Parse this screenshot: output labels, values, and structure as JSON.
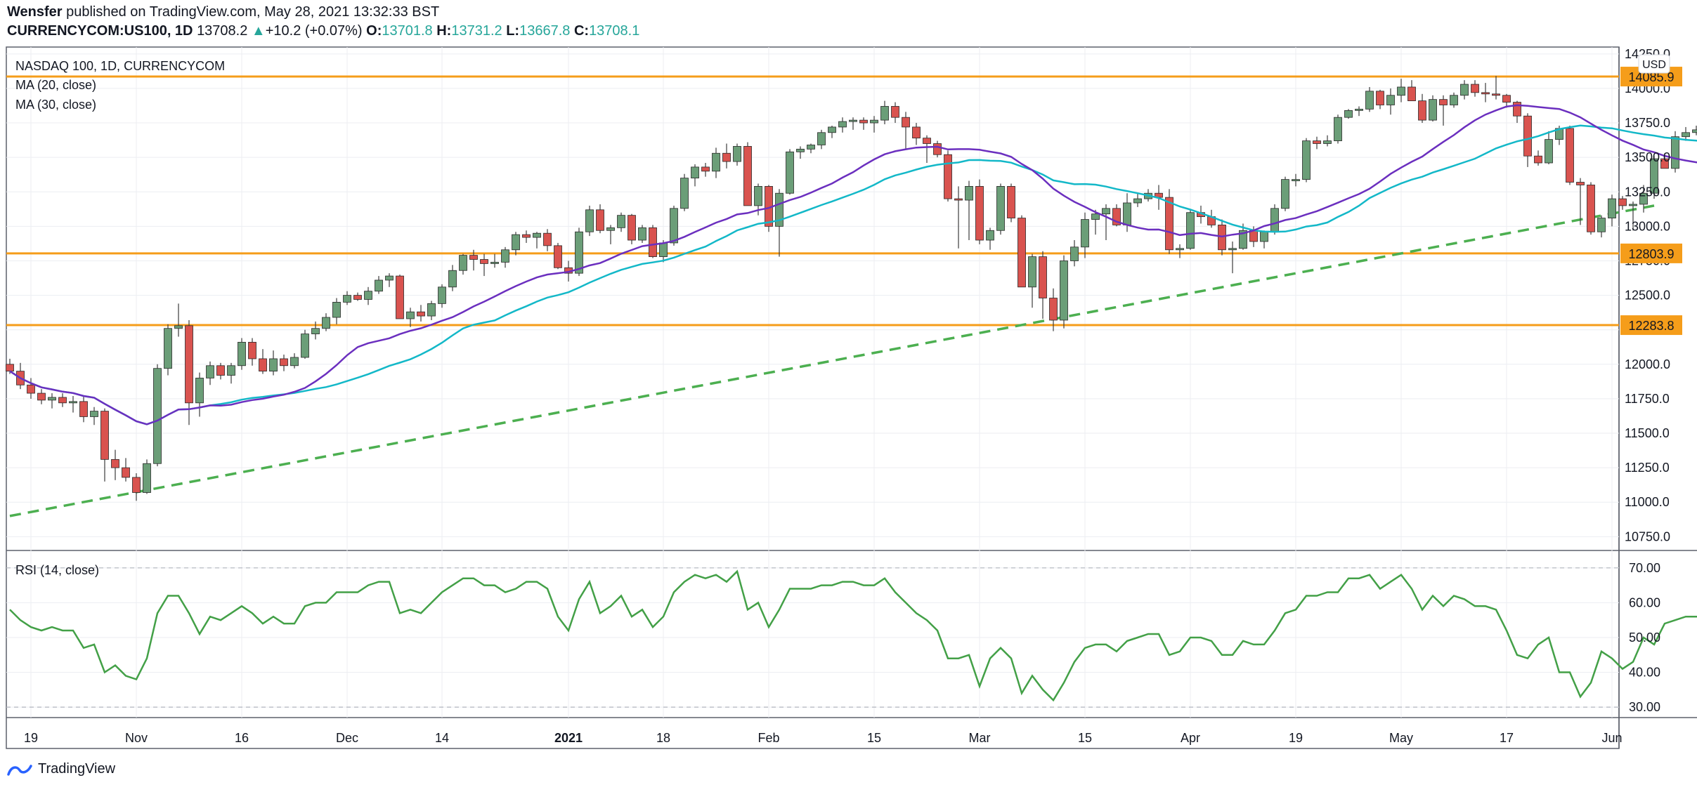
{
  "header": {
    "publisher": "Wensfer",
    "published_text": " published on TradingView.com, May 28, 2021 13:32:33 BST",
    "symbol": "CURRENCYCOM:US100, 1D",
    "last": "13708.2",
    "change_arrow": "▲",
    "change": "+10.2 (+0.07%)",
    "open_label": "O:",
    "open": "13701.8",
    "high_label": "H:",
    "high": "13731.2",
    "low_label": "L:",
    "low": "13667.8",
    "close_label": "C:",
    "close": "13708.1"
  },
  "legend": {
    "title": "NASDAQ 100, 1D, CURRENCYCOM",
    "ma20": "MA (20, close)",
    "ma30": "MA (30, close)",
    "currency": "USD",
    "rsi": "RSI (14, close)"
  },
  "footer": {
    "brand": "TradingView",
    "logo_icon": "tradingview-logo-icon"
  },
  "colors": {
    "up": "#26a69a",
    "up_body": "#6b9e78",
    "down_body": "#d9534f",
    "ma20": "#6b2fbf",
    "ma30": "#13b8c8",
    "level": "#f59d1a",
    "trend": "#4caf50",
    "rsi": "#43a047"
  },
  "chart_data": [
    {
      "type": "candlestick",
      "title": "NASDAQ 100, 1D, CURRENCYCOM",
      "y_axis_ticks": [
        10750,
        11000,
        11250,
        11500,
        11750,
        12000,
        12250,
        12500,
        12750,
        13000,
        13250,
        13500,
        13750,
        14000,
        14250
      ],
      "ylim": [
        10650,
        14300
      ],
      "x_tick_labels": [
        "19",
        "Nov",
        "16",
        "Dec",
        "14",
        "2021",
        "18",
        "Feb",
        "15",
        "Mar",
        "15",
        "Apr",
        "19",
        "May",
        "17",
        "Jun"
      ],
      "x_tick_bar_index": [
        2,
        12,
        22,
        32,
        41,
        53,
        62,
        72,
        82,
        92,
        102,
        112,
        122,
        132,
        142,
        152
      ],
      "horizontal_levels": [
        14085.9,
        12803.9,
        12283.8
      ],
      "trend_line": {
        "start": [
          0,
          10900
        ],
        "end": [
          156,
          13150
        ]
      },
      "candles": [
        [
          12000,
          12040,
          11930,
          11950
        ],
        [
          11950,
          12010,
          11820,
          11850
        ],
        [
          11850,
          11900,
          11750,
          11790
        ],
        [
          11790,
          11820,
          11710,
          11740
        ],
        [
          11740,
          11790,
          11680,
          11760
        ],
        [
          11760,
          11790,
          11690,
          11720
        ],
        [
          11720,
          11770,
          11650,
          11730
        ],
        [
          11730,
          11770,
          11580,
          11620
        ],
        [
          11620,
          11690,
          11560,
          11660
        ],
        [
          11660,
          11680,
          11150,
          11310
        ],
        [
          11310,
          11380,
          11160,
          11250
        ],
        [
          11250,
          11320,
          11150,
          11180
        ],
        [
          11180,
          11210,
          11010,
          11070
        ],
        [
          11070,
          11310,
          11060,
          11280
        ],
        [
          11280,
          12000,
          11260,
          11970
        ],
        [
          11970,
          12290,
          11920,
          12260
        ],
        [
          12260,
          12440,
          12200,
          12280
        ],
        [
          12280,
          12320,
          11560,
          11720
        ],
        [
          11720,
          11940,
          11620,
          11900
        ],
        [
          11900,
          12020,
          11850,
          11990
        ],
        [
          11990,
          12010,
          11890,
          11920
        ],
        [
          11920,
          12010,
          11860,
          11990
        ],
        [
          11990,
          12190,
          11960,
          12160
        ],
        [
          12160,
          12190,
          11990,
          12040
        ],
        [
          12040,
          12110,
          11930,
          11950
        ],
        [
          11950,
          12100,
          11920,
          12040
        ],
        [
          12040,
          12070,
          11950,
          11990
        ],
        [
          11990,
          12080,
          11970,
          12050
        ],
        [
          12050,
          12250,
          12040,
          12220
        ],
        [
          12220,
          12310,
          12180,
          12260
        ],
        [
          12260,
          12370,
          12240,
          12340
        ],
        [
          12340,
          12480,
          12290,
          12450
        ],
        [
          12450,
          12530,
          12430,
          12500
        ],
        [
          12500,
          12520,
          12460,
          12470
        ],
        [
          12470,
          12560,
          12430,
          12530
        ],
        [
          12530,
          12640,
          12510,
          12610
        ],
        [
          12610,
          12660,
          12560,
          12640
        ],
        [
          12640,
          12650,
          12340,
          12330
        ],
        [
          12330,
          12410,
          12270,
          12380
        ],
        [
          12380,
          12430,
          12310,
          12350
        ],
        [
          12350,
          12460,
          12320,
          12440
        ],
        [
          12440,
          12580,
          12410,
          12560
        ],
        [
          12560,
          12720,
          12530,
          12680
        ],
        [
          12680,
          12800,
          12650,
          12790
        ],
        [
          12790,
          12830,
          12680,
          12760
        ],
        [
          12760,
          12800,
          12640,
          12730
        ],
        [
          12730,
          12800,
          12700,
          12740
        ],
        [
          12740,
          12850,
          12700,
          12830
        ],
        [
          12830,
          12960,
          12790,
          12940
        ],
        [
          12940,
          12970,
          12880,
          12920
        ],
        [
          12920,
          12960,
          12840,
          12950
        ],
        [
          12950,
          12980,
          12820,
          12860
        ],
        [
          12860,
          12880,
          12690,
          12700
        ],
        [
          12700,
          12750,
          12600,
          12660
        ],
        [
          12660,
          12990,
          12640,
          12960
        ],
        [
          12960,
          13150,
          12930,
          13120
        ],
        [
          13120,
          13160,
          12950,
          12970
        ],
        [
          12970,
          13010,
          12870,
          12990
        ],
        [
          12990,
          13100,
          12960,
          13080
        ],
        [
          13080,
          13090,
          12870,
          12900
        ],
        [
          12900,
          13010,
          12880,
          12990
        ],
        [
          12990,
          13010,
          12770,
          12780
        ],
        [
          12780,
          12900,
          12740,
          12880
        ],
        [
          12880,
          13150,
          12860,
          13130
        ],
        [
          13130,
          13380,
          13110,
          13350
        ],
        [
          13350,
          13450,
          13290,
          13430
        ],
        [
          13430,
          13460,
          13360,
          13400
        ],
        [
          13400,
          13570,
          13350,
          13530
        ],
        [
          13530,
          13600,
          13420,
          13470
        ],
        [
          13470,
          13600,
          13440,
          13580
        ],
        [
          13580,
          13610,
          13150,
          13150
        ],
        [
          13150,
          13310,
          13080,
          13290
        ],
        [
          13290,
          13300,
          12960,
          13000
        ],
        [
          13000,
          13270,
          12780,
          13240
        ],
        [
          13240,
          13560,
          13230,
          13540
        ],
        [
          13540,
          13580,
          13490,
          13560
        ],
        [
          13560,
          13600,
          13530,
          13590
        ],
        [
          13590,
          13700,
          13560,
          13680
        ],
        [
          13680,
          13730,
          13640,
          13720
        ],
        [
          13720,
          13790,
          13680,
          13760
        ],
        [
          13760,
          13790,
          13700,
          13770
        ],
        [
          13770,
          13790,
          13700,
          13750
        ],
        [
          13750,
          13800,
          13680,
          13770
        ],
        [
          13770,
          13910,
          13740,
          13870
        ],
        [
          13870,
          13900,
          13750,
          13790
        ],
        [
          13790,
          13830,
          13560,
          13720
        ],
        [
          13720,
          13750,
          13590,
          13640
        ],
        [
          13640,
          13660,
          13460,
          13600
        ],
        [
          13600,
          13620,
          13500,
          13520
        ],
        [
          13520,
          13550,
          13180,
          13200
        ],
        [
          13200,
          13290,
          12840,
          13190
        ],
        [
          13190,
          13330,
          12900,
          13290
        ],
        [
          13290,
          13340,
          12870,
          12900
        ],
        [
          12900,
          12990,
          12830,
          12970
        ],
        [
          12970,
          13310,
          12940,
          13290
        ],
        [
          13290,
          13310,
          13030,
          13060
        ],
        [
          13060,
          13080,
          12570,
          12560
        ],
        [
          12560,
          12800,
          12410,
          12780
        ],
        [
          12780,
          12820,
          12330,
          12480
        ],
        [
          12480,
          12550,
          12240,
          12320
        ],
        [
          12320,
          12790,
          12260,
          12750
        ],
        [
          12750,
          12900,
          12710,
          12850
        ],
        [
          12850,
          13100,
          12770,
          13050
        ],
        [
          13050,
          13120,
          12940,
          13090
        ],
        [
          13090,
          13160,
          12900,
          13130
        ],
        [
          13130,
          13160,
          13000,
          13010
        ],
        [
          13010,
          13240,
          12960,
          13170
        ],
        [
          13170,
          13240,
          13140,
          13200
        ],
        [
          13200,
          13270,
          13180,
          13240
        ],
        [
          13240,
          13300,
          13120,
          13210
        ],
        [
          13210,
          13270,
          12800,
          12830
        ],
        [
          12830,
          12870,
          12770,
          12840
        ],
        [
          12840,
          13120,
          12830,
          13100
        ],
        [
          13100,
          13150,
          13020,
          13070
        ],
        [
          13070,
          13120,
          12990,
          13010
        ],
        [
          13010,
          13050,
          12790,
          12830
        ],
        [
          12830,
          12890,
          12660,
          12840
        ],
        [
          12840,
          13020,
          12830,
          12970
        ],
        [
          12970,
          13000,
          12850,
          12890
        ],
        [
          12890,
          12970,
          12840,
          12960
        ],
        [
          12960,
          13160,
          12940,
          13130
        ],
        [
          13130,
          13360,
          13110,
          13340
        ],
        [
          13340,
          13380,
          13290,
          13340
        ],
        [
          13340,
          13640,
          13320,
          13620
        ],
        [
          13620,
          13650,
          13560,
          13600
        ],
        [
          13600,
          13660,
          13580,
          13620
        ],
        [
          13620,
          13810,
          13600,
          13790
        ],
        [
          13790,
          13850,
          13780,
          13840
        ],
        [
          13840,
          13870,
          13800,
          13850
        ],
        [
          13850,
          14010,
          13830,
          13980
        ],
        [
          13980,
          13990,
          13850,
          13880
        ],
        [
          13880,
          14000,
          13810,
          13950
        ],
        [
          13950,
          14070,
          13900,
          14010
        ],
        [
          14010,
          14060,
          13920,
          13910
        ],
        [
          13910,
          13960,
          13750,
          13770
        ],
        [
          13770,
          13950,
          13760,
          13920
        ],
        [
          13920,
          13950,
          13730,
          13880
        ],
        [
          13880,
          13970,
          13860,
          13950
        ],
        [
          13950,
          14060,
          13920,
          14030
        ],
        [
          14030,
          14060,
          13940,
          13970
        ],
        [
          13970,
          14040,
          13900,
          13960
        ],
        [
          13960,
          14090,
          13920,
          13950
        ],
        [
          13950,
          13960,
          13860,
          13900
        ],
        [
          13900,
          13910,
          13750,
          13800
        ],
        [
          13800,
          13820,
          13430,
          13510
        ],
        [
          13510,
          13550,
          13440,
          13460
        ],
        [
          13460,
          13690,
          13450,
          13630
        ],
        [
          13630,
          13730,
          13590,
          13710
        ],
        [
          13710,
          13730,
          13300,
          13320
        ],
        [
          13320,
          13350,
          13010,
          13300
        ],
        [
          13300,
          13320,
          12940,
          12960
        ],
        [
          12960,
          13080,
          12920,
          13060
        ],
        [
          13060,
          13230,
          13000,
          13200
        ],
        [
          13200,
          13220,
          13120,
          13150
        ],
        [
          13150,
          13180,
          12970,
          13160
        ],
        [
          13160,
          13300,
          13100,
          13240
        ],
        [
          13240,
          13510,
          13200,
          13490
        ],
        [
          13490,
          13530,
          13440,
          13420
        ],
        [
          13420,
          13690,
          13390,
          13650
        ],
        [
          13650,
          13720,
          13620,
          13680
        ],
        [
          13680,
          13730,
          13660,
          13700
        ],
        [
          13700,
          13730,
          13660,
          13708
        ]
      ]
    },
    {
      "type": "line",
      "title": "RSI (14, close)",
      "y_axis_ticks": [
        30,
        40,
        50,
        60,
        70
      ],
      "ylim": [
        27,
        75
      ],
      "dashed_levels": [
        30,
        70
      ],
      "values": [
        58,
        55,
        53,
        52,
        53,
        52,
        52,
        47,
        48,
        40,
        42,
        39,
        38,
        44,
        57,
        62,
        62,
        57,
        51,
        56,
        55,
        57,
        59,
        57,
        54,
        56,
        54,
        54,
        59,
        60,
        60,
        63,
        63,
        63,
        65,
        66,
        66,
        57,
        58,
        57,
        60,
        63,
        65,
        67,
        67,
        65,
        65,
        63,
        64,
        66,
        66,
        64,
        56,
        52,
        61,
        66,
        57,
        59,
        62,
        56,
        58,
        53,
        56,
        63,
        66,
        68,
        67,
        68,
        66,
        69,
        58,
        60,
        53,
        58,
        64,
        64,
        64,
        65,
        65,
        66,
        66,
        65,
        65,
        67,
        63,
        60,
        57,
        55,
        52,
        44,
        44,
        45,
        36,
        44,
        47,
        44,
        34,
        39,
        35,
        32,
        37,
        43,
        47,
        48,
        48,
        46,
        49,
        50,
        51,
        51,
        45,
        46,
        50,
        50,
        49,
        45,
        45,
        49,
        48,
        48,
        52,
        57,
        58,
        62,
        62,
        63,
        63,
        67,
        67,
        68,
        64,
        66,
        68,
        64,
        58,
        62,
        59,
        62,
        61,
        59,
        59,
        58,
        52,
        45,
        44,
        48,
        50,
        40,
        40,
        33,
        37,
        46,
        44,
        41,
        43,
        50,
        48,
        54,
        55,
        56,
        56,
        56
      ]
    }
  ]
}
